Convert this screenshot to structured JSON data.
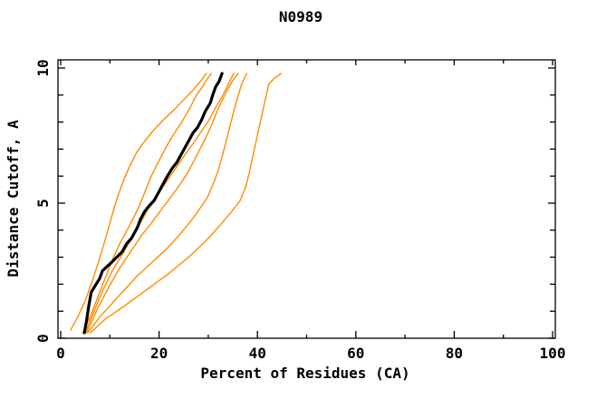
{
  "page": {
    "background": "#ffffff",
    "text_color": "#000000"
  },
  "chart_data": {
    "type": "line",
    "title": "N0989",
    "xlabel": "Percent of Residues (CA)",
    "ylabel": "Distance Cutoff, A",
    "xlim": [
      0,
      100
    ],
    "ylim": [
      0,
      10
    ],
    "grid": false,
    "legend": "none",
    "frame": "full box with inward ticks on all four sides",
    "x_major_ticks": [
      0,
      20,
      40,
      60,
      80,
      100
    ],
    "x_minor_ticks": [
      10,
      30,
      50,
      70,
      90
    ],
    "x_tick_labels": [
      "0",
      "20",
      "40",
      "60",
      "80",
      "100"
    ],
    "y_major_ticks": [
      0,
      5,
      10
    ],
    "y_minor_ticks": [
      1,
      2,
      3,
      4,
      6,
      7,
      8,
      9
    ],
    "y_tick_labels": [
      "0",
      "5",
      "10"
    ],
    "colors": {
      "reference_curve": "#000000",
      "model_curves": "#ff8c00"
    },
    "series": [
      {
        "name": "orange-curve-1",
        "color": "#ff8c00",
        "width": 1.4,
        "points": [
          [
            2.0,
            0.3
          ],
          [
            3.5,
            0.8
          ],
          [
            5.0,
            1.4
          ],
          [
            6.2,
            2.0
          ],
          [
            7.3,
            2.6
          ],
          [
            8.3,
            3.2
          ],
          [
            9.3,
            3.8
          ],
          [
            10.2,
            4.4
          ],
          [
            11.0,
            4.9
          ],
          [
            11.9,
            5.4
          ],
          [
            12.9,
            5.9
          ],
          [
            14.1,
            6.4
          ],
          [
            15.5,
            6.9
          ],
          [
            17.1,
            7.3
          ],
          [
            18.9,
            7.7
          ],
          [
            21.0,
            8.1
          ],
          [
            23.3,
            8.5
          ],
          [
            25.4,
            8.9
          ],
          [
            27.0,
            9.2
          ],
          [
            28.4,
            9.5
          ],
          [
            29.6,
            9.8
          ]
        ]
      },
      {
        "name": "orange-curve-2",
        "color": "#ff8c00",
        "width": 1.4,
        "points": [
          [
            4.5,
            0.2
          ],
          [
            6.0,
            0.8
          ],
          [
            7.5,
            1.5
          ],
          [
            9.0,
            2.2
          ],
          [
            10.5,
            2.9
          ],
          [
            12.0,
            3.5
          ],
          [
            13.8,
            4.1
          ],
          [
            15.2,
            4.6
          ],
          [
            16.2,
            5.0
          ],
          [
            17.3,
            5.5
          ],
          [
            18.4,
            6.0
          ],
          [
            19.8,
            6.5
          ],
          [
            21.2,
            7.0
          ],
          [
            22.8,
            7.5
          ],
          [
            24.6,
            8.0
          ],
          [
            26.2,
            8.5
          ],
          [
            27.6,
            9.0
          ],
          [
            28.8,
            9.3
          ],
          [
            29.8,
            9.6
          ],
          [
            30.6,
            9.8
          ]
        ]
      },
      {
        "name": "orange-curve-3",
        "color": "#ff8c00",
        "width": 1.4,
        "points": [
          [
            5.0,
            0.2
          ],
          [
            6.8,
            1.0
          ],
          [
            8.6,
            1.8
          ],
          [
            10.5,
            2.5
          ],
          [
            12.5,
            3.1
          ],
          [
            14.5,
            3.7
          ],
          [
            16.3,
            4.3
          ],
          [
            17.8,
            4.8
          ],
          [
            19.3,
            5.2
          ],
          [
            20.8,
            5.6
          ],
          [
            22.3,
            6.0
          ],
          [
            23.8,
            6.4
          ],
          [
            25.3,
            6.8
          ],
          [
            26.9,
            7.2
          ],
          [
            28.4,
            7.6
          ],
          [
            29.9,
            8.0
          ],
          [
            31.4,
            8.5
          ],
          [
            32.7,
            8.9
          ],
          [
            33.8,
            9.3
          ],
          [
            34.6,
            9.6
          ],
          [
            35.2,
            9.8
          ]
        ]
      },
      {
        "name": "orange-curve-4",
        "color": "#ff8c00",
        "width": 1.4,
        "points": [
          [
            5.3,
            0.2
          ],
          [
            7.5,
            1.1
          ],
          [
            9.8,
            1.9
          ],
          [
            12.0,
            2.6
          ],
          [
            14.2,
            3.2
          ],
          [
            16.4,
            3.8
          ],
          [
            18.6,
            4.3
          ],
          [
            20.6,
            4.8
          ],
          [
            22.3,
            5.2
          ],
          [
            23.9,
            5.6
          ],
          [
            25.4,
            6.0
          ],
          [
            26.9,
            6.5
          ],
          [
            28.3,
            7.0
          ],
          [
            29.7,
            7.5
          ],
          [
            30.9,
            8.0
          ],
          [
            32.0,
            8.5
          ],
          [
            33.1,
            8.9
          ],
          [
            34.2,
            9.3
          ],
          [
            35.2,
            9.6
          ],
          [
            36.1,
            9.8
          ]
        ]
      },
      {
        "name": "orange-curve-5",
        "color": "#ff8c00",
        "width": 1.4,
        "points": [
          [
            5.5,
            0.2
          ],
          [
            8.0,
            0.8
          ],
          [
            10.5,
            1.3
          ],
          [
            13.0,
            1.8
          ],
          [
            15.5,
            2.3
          ],
          [
            18.5,
            2.8
          ],
          [
            21.5,
            3.3
          ],
          [
            24.0,
            3.8
          ],
          [
            26.3,
            4.3
          ],
          [
            28.3,
            4.8
          ],
          [
            29.8,
            5.2
          ],
          [
            31.0,
            5.7
          ],
          [
            32.0,
            6.2
          ],
          [
            32.8,
            6.7
          ],
          [
            33.5,
            7.2
          ],
          [
            34.2,
            7.7
          ],
          [
            34.9,
            8.2
          ],
          [
            35.5,
            8.6
          ],
          [
            36.1,
            9.0
          ],
          [
            36.8,
            9.4
          ],
          [
            37.3,
            9.6
          ],
          [
            37.8,
            9.8
          ]
        ]
      },
      {
        "name": "orange-curve-6",
        "color": "#ff8c00",
        "width": 1.4,
        "points": [
          [
            6.0,
            0.2
          ],
          [
            9.0,
            0.7
          ],
          [
            13.0,
            1.2
          ],
          [
            17.5,
            1.8
          ],
          [
            22.0,
            2.4
          ],
          [
            26.0,
            3.0
          ],
          [
            29.5,
            3.6
          ],
          [
            32.5,
            4.2
          ],
          [
            34.8,
            4.7
          ],
          [
            36.5,
            5.1
          ],
          [
            37.6,
            5.6
          ],
          [
            38.3,
            6.1
          ],
          [
            38.9,
            6.6
          ],
          [
            39.5,
            7.1
          ],
          [
            40.1,
            7.6
          ],
          [
            40.7,
            8.1
          ],
          [
            41.3,
            8.6
          ],
          [
            41.8,
            9.0
          ],
          [
            42.3,
            9.4
          ],
          [
            43.3,
            9.6
          ],
          [
            44.8,
            9.8
          ]
        ]
      },
      {
        "name": "thick-black-curve",
        "color": "#000000",
        "width": 3.2,
        "points": [
          [
            4.8,
            0.2
          ],
          [
            5.3,
            0.7
          ],
          [
            5.7,
            1.2
          ],
          [
            6.2,
            1.7
          ],
          [
            7.2,
            2.0
          ],
          [
            7.9,
            2.2
          ],
          [
            8.5,
            2.5
          ],
          [
            10.3,
            2.8
          ],
          [
            12.5,
            3.2
          ],
          [
            13.4,
            3.5
          ],
          [
            14.4,
            3.7
          ],
          [
            15.6,
            4.1
          ],
          [
            16.2,
            4.4
          ],
          [
            17.1,
            4.7
          ],
          [
            18.0,
            4.9
          ],
          [
            19.0,
            5.1
          ],
          [
            19.9,
            5.4
          ],
          [
            20.8,
            5.7
          ],
          [
            21.7,
            6.0
          ],
          [
            22.7,
            6.3
          ],
          [
            23.6,
            6.5
          ],
          [
            24.5,
            6.8
          ],
          [
            25.1,
            7.0
          ],
          [
            26.0,
            7.3
          ],
          [
            26.9,
            7.6
          ],
          [
            27.8,
            7.8
          ],
          [
            28.7,
            8.1
          ],
          [
            29.4,
            8.4
          ],
          [
            30.4,
            8.7
          ],
          [
            30.9,
            9.0
          ],
          [
            31.5,
            9.3
          ],
          [
            32.2,
            9.5
          ],
          [
            32.8,
            9.8
          ]
        ]
      }
    ]
  }
}
